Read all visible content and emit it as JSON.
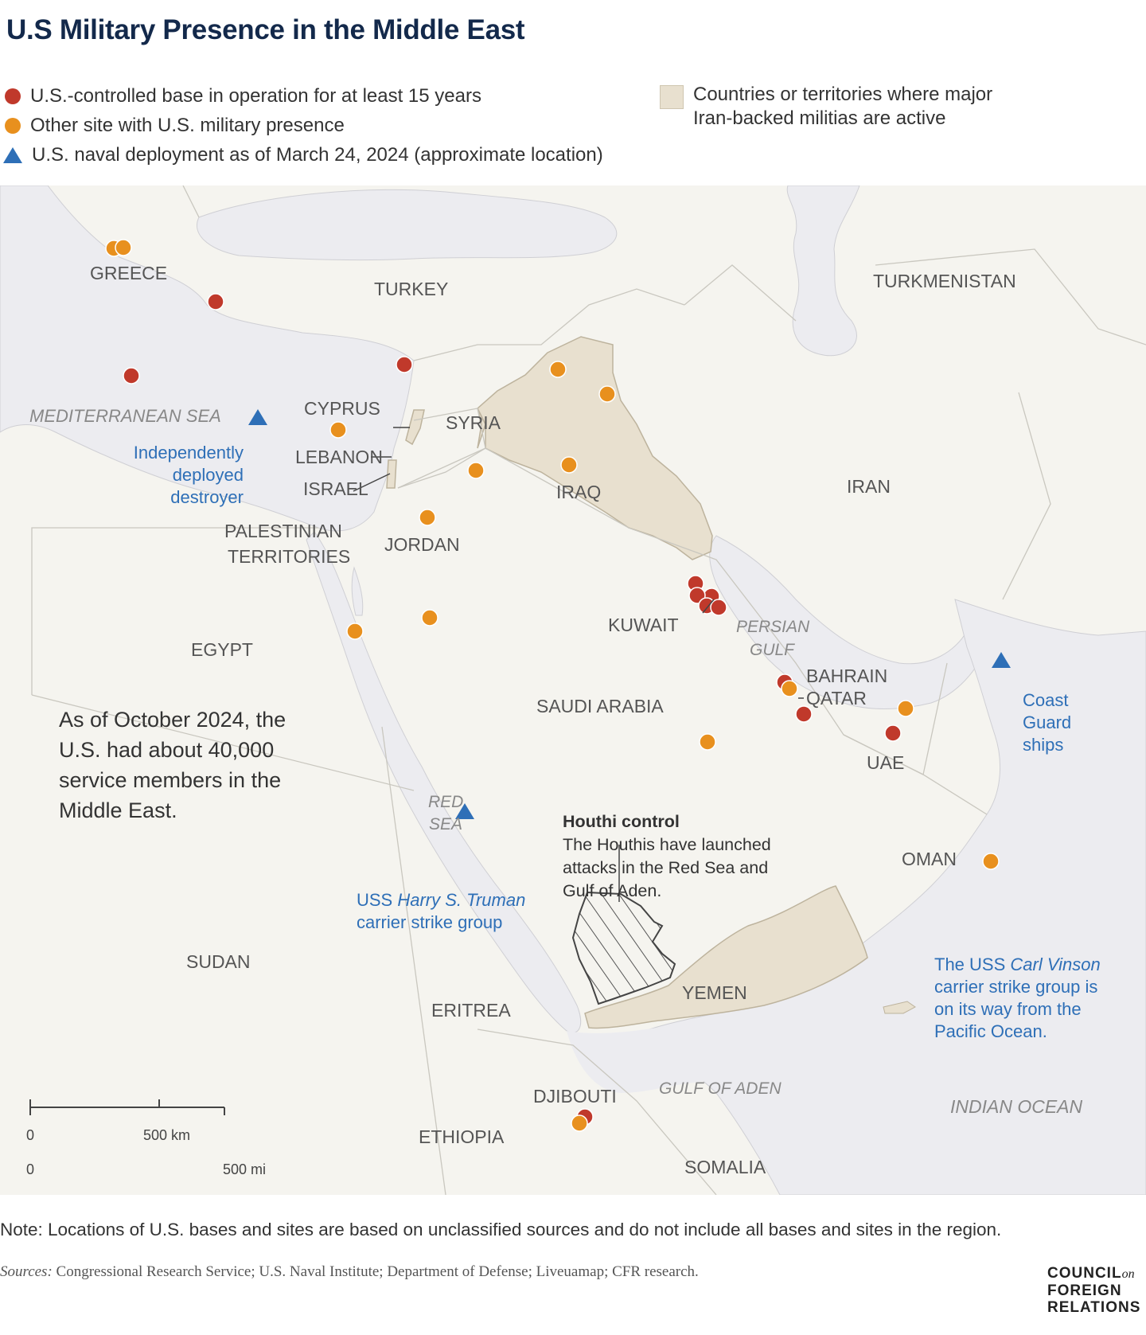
{
  "title": "U.S Military Presence in the Middle East",
  "legend": {
    "red_base": "U.S.-controlled base in operation for at least 15 years",
    "orange_site": "Other site with U.S. military presence",
    "naval": "U.S. naval deployment as of March 24, 2024 (approximate location)",
    "militia_line1": "Countries or territories where major",
    "militia_line2": "Iran-backed militias are active"
  },
  "colors": {
    "red_base": "#c0392b",
    "orange_site": "#e8901e",
    "naval": "#2e6fb7",
    "militia_area": "#e8e0cf",
    "water": "#ececf0",
    "land": "#f5f4ef",
    "label_blue": "#2e6fb7",
    "label_gray": "#555555"
  },
  "map": {
    "countries": {
      "greece": "GREECE",
      "turkey": "TURKEY",
      "turkmenistan": "TURKMENISTAN",
      "cyprus": "CYPRUS",
      "syria": "SYRIA",
      "lebanon": "LEBANON",
      "israel": "ISRAEL",
      "palestinian1": "PALESTINIAN",
      "palestinian2": "TERRITORIES",
      "jordan": "JORDAN",
      "iraq": "IRAQ",
      "iran": "IRAN",
      "kuwait": "KUWAIT",
      "bahrain": "BAHRAIN",
      "qatar": "QATAR",
      "uae": "UAE",
      "egypt": "EGYPT",
      "saudi": "SAUDI ARABIA",
      "oman": "OMAN",
      "sudan": "SUDAN",
      "yemen": "YEMEN",
      "eritrea": "ERITREA",
      "djibouti": "DJIBOUTI",
      "ethiopia": "ETHIOPIA",
      "somalia": "SOMALIA"
    },
    "water": {
      "med": "MEDITERRANEAN SEA",
      "persian1": "PERSIAN",
      "persian2": "GULF",
      "red1": "RED",
      "red2": "SEA",
      "aden": "GULF OF ADEN",
      "indian": "INDIAN OCEAN"
    },
    "naval_labels": {
      "destroyer1": "Independently",
      "destroyer2": "deployed",
      "destroyer3": "destroyer",
      "coast1": "Coast",
      "coast2": "Guard",
      "coast3": "ships",
      "truman_pre": "USS ",
      "truman_name": "Harry S. Truman",
      "truman2": "carrier strike group",
      "vinson_pre": "The USS ",
      "vinson_name": "Carl Vinson",
      "vinson2": "carrier strike group is",
      "vinson3": "on its way from the",
      "vinson4": "Pacific Ocean."
    },
    "callout": {
      "line1": "As of October 2024, the",
      "line2": "U.S. had about 40,000",
      "line3": "service members in the",
      "line4": "Middle East."
    },
    "houthi": {
      "title": "Houthi control",
      "line1": "The Houthis have launched",
      "line2": "attacks in the Red Sea and",
      "line3": "Gulf of Aden."
    },
    "scale": {
      "km_zero": "0",
      "km_label": "500 km",
      "mi_zero": "0",
      "mi_label": "500 mi"
    }
  },
  "note": "Note: Locations of U.S. bases and sites are based on unclassified sources and do not include all bases and sites in the region.",
  "sources": {
    "label": "Sources:",
    "text": " Congressional Research Service; U.S. Naval Institute; Department of Defense; Liveuamap; CFR research."
  },
  "logo": {
    "line1": "COUNCIL",
    "on": "on",
    "line2": "FOREIGN",
    "line3": "RELATIONS"
  }
}
